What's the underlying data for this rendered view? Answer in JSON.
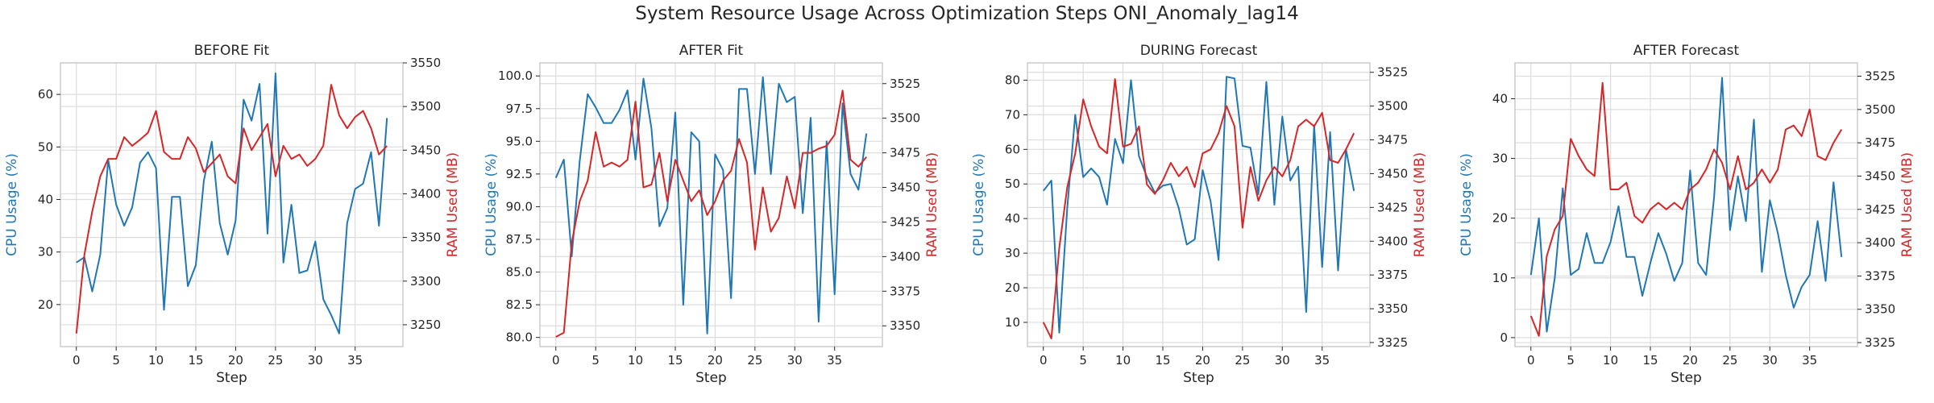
{
  "figure": {
    "suptitle": "System Resource Usage Across Optimization Steps ONI_Anomaly_lag14",
    "colors": {
      "cpu": "#1f77b4",
      "ram": "#d62728",
      "grid": "#dddddd",
      "axis": "#cccccc",
      "text": "#262626"
    }
  },
  "chart_data": [
    {
      "type": "line",
      "title": "BEFORE Fit",
      "xlabel": "Step",
      "ylabel": "CPU Usage (%)",
      "ylabel_right": "RAM Used (MB)",
      "x": [
        0,
        1,
        2,
        3,
        4,
        5,
        6,
        7,
        8,
        9,
        10,
        11,
        12,
        13,
        14,
        15,
        16,
        17,
        18,
        19,
        20,
        21,
        22,
        23,
        24,
        25,
        26,
        27,
        28,
        29,
        30,
        31,
        32,
        33,
        34,
        35,
        36,
        37,
        38,
        39
      ],
      "xlim": [
        -2,
        41
      ],
      "xticks": [
        0,
        5,
        10,
        15,
        20,
        25,
        30,
        35
      ],
      "ylim": [
        12,
        66
      ],
      "yticks": [
        20,
        30,
        40,
        50,
        60
      ],
      "ylim_right": [
        3225,
        3550
      ],
      "yticks_right": [
        3250,
        3300,
        3350,
        3400,
        3450,
        3500,
        3550
      ],
      "grid": true,
      "series": [
        {
          "name": "CPU Usage (%)",
          "axis": "left",
          "color": "#1f77b4",
          "values": [
            28,
            29,
            22.5,
            29.5,
            47.5,
            39,
            35,
            38.5,
            47,
            49,
            46,
            19,
            40.5,
            40.5,
            23.5,
            27.5,
            43.5,
            51,
            35.5,
            29.5,
            36,
            59,
            55,
            62,
            33.5,
            64,
            28,
            39,
            26,
            26.5,
            32,
            21,
            18,
            14.5,
            35.5,
            42,
            43,
            49,
            35,
            55.5
          ]
        },
        {
          "name": "RAM Used (MB)",
          "axis": "right",
          "color": "#d62728",
          "values": [
            3240,
            3330,
            3380,
            3420,
            3440,
            3440,
            3465,
            3455,
            3462,
            3470,
            3495,
            3448,
            3440,
            3440,
            3465,
            3452,
            3425,
            3435,
            3445,
            3420,
            3412,
            3475,
            3450,
            3465,
            3480,
            3420,
            3455,
            3440,
            3445,
            3432,
            3440,
            3455,
            3525,
            3490,
            3475,
            3488,
            3495,
            3475,
            3445,
            3455
          ]
        }
      ]
    },
    {
      "type": "line",
      "title": "AFTER Fit",
      "xlabel": "Step",
      "ylabel": "CPU Usage (%)",
      "ylabel_right": "RAM Used (MB)",
      "x": [
        0,
        1,
        2,
        3,
        4,
        5,
        6,
        7,
        8,
        9,
        10,
        11,
        12,
        13,
        14,
        15,
        16,
        17,
        18,
        19,
        20,
        21,
        22,
        23,
        24,
        25,
        26,
        27,
        28,
        29,
        30,
        31,
        32,
        33,
        34,
        35,
        36,
        37,
        38,
        39
      ],
      "xlim": [
        -2,
        41
      ],
      "xticks": [
        0,
        5,
        10,
        15,
        20,
        25,
        30,
        35
      ],
      "ylim": [
        79.3,
        101
      ],
      "yticks": [
        80.0,
        82.5,
        85.0,
        87.5,
        90.0,
        92.5,
        95.0,
        97.5,
        100.0
      ],
      "ylim_right": [
        3335,
        3540
      ],
      "yticks_right": [
        3350,
        3375,
        3400,
        3425,
        3450,
        3475,
        3500,
        3525
      ],
      "grid": true,
      "series": [
        {
          "name": "CPU Usage (%)",
          "axis": "left",
          "color": "#1f77b4",
          "values": [
            92.2,
            93.6,
            86.2,
            93.5,
            98.6,
            97.6,
            96.4,
            96.4,
            97.4,
            98.9,
            93.6,
            99.8,
            96,
            88.5,
            89.9,
            97.2,
            82.5,
            95.7,
            95,
            80.3,
            94,
            92.8,
            83,
            99,
            99,
            92.5,
            99.9,
            92.5,
            99.4,
            98,
            98.4,
            89.5,
            96.8,
            81.2,
            95,
            83.3,
            97.9,
            92.5,
            91.3,
            95.6
          ]
        },
        {
          "name": "RAM Used (MB)",
          "axis": "right",
          "color": "#d62728",
          "values": [
            3342,
            3345,
            3410,
            3440,
            3455,
            3490,
            3465,
            3468,
            3465,
            3470,
            3512,
            3450,
            3452,
            3475,
            3440,
            3470,
            3455,
            3440,
            3448,
            3430,
            3440,
            3455,
            3462,
            3485,
            3468,
            3405,
            3450,
            3418,
            3428,
            3458,
            3435,
            3475,
            3475,
            3478,
            3480,
            3488,
            3520,
            3470,
            3465,
            3472
          ]
        }
      ]
    },
    {
      "type": "line",
      "title": "DURING Forecast",
      "xlabel": "Step",
      "ylabel": "CPU Usage (%)",
      "ylabel_right": "RAM Used (MB)",
      "x": [
        0,
        1,
        2,
        3,
        4,
        5,
        6,
        7,
        8,
        9,
        10,
        11,
        12,
        13,
        14,
        15,
        16,
        17,
        18,
        19,
        20,
        21,
        22,
        23,
        24,
        25,
        26,
        27,
        28,
        29,
        30,
        31,
        32,
        33,
        34,
        35,
        36,
        37,
        38,
        39
      ],
      "xlim": [
        -2,
        41
      ],
      "xticks": [
        0,
        5,
        10,
        15,
        20,
        25,
        30,
        35
      ],
      "ylim": [
        3,
        85
      ],
      "yticks": [
        10,
        20,
        30,
        40,
        50,
        60,
        70,
        80
      ],
      "ylim_right": [
        3322,
        3532
      ],
      "yticks_right": [
        3325,
        3350,
        3375,
        3400,
        3425,
        3450,
        3475,
        3500,
        3525
      ],
      "grid": true,
      "series": [
        {
          "name": "CPU Usage (%)",
          "axis": "left",
          "color": "#1f77b4",
          "values": [
            48,
            51,
            7,
            43,
            70,
            52,
            54.5,
            52,
            44,
            63,
            56,
            80,
            58,
            52,
            47.5,
            49.5,
            50,
            43,
            32.5,
            34,
            54,
            45,
            28,
            81,
            80.5,
            61,
            60.5,
            47,
            79.5,
            44,
            69.5,
            51,
            55,
            13,
            67,
            26,
            65,
            25,
            60,
            48
          ]
        },
        {
          "name": "RAM Used (MB)",
          "axis": "right",
          "color": "#d62728",
          "values": [
            3340,
            3328,
            3395,
            3440,
            3465,
            3505,
            3485,
            3470,
            3465,
            3520,
            3470,
            3472,
            3485,
            3442,
            3435,
            3445,
            3458,
            3448,
            3455,
            3440,
            3465,
            3468,
            3480,
            3500,
            3485,
            3410,
            3455,
            3430,
            3445,
            3455,
            3448,
            3460,
            3485,
            3490,
            3485,
            3495,
            3460,
            3458,
            3468,
            3480
          ]
        }
      ]
    },
    {
      "type": "line",
      "title": "AFTER Forecast",
      "xlabel": "Step",
      "ylabel": "CPU Usage (%)",
      "ylabel_right": "RAM Used (MB)",
      "x": [
        0,
        1,
        2,
        3,
        4,
        5,
        6,
        7,
        8,
        9,
        10,
        11,
        12,
        13,
        14,
        15,
        16,
        17,
        18,
        19,
        20,
        21,
        22,
        23,
        24,
        25,
        26,
        27,
        28,
        29,
        30,
        31,
        32,
        33,
        34,
        35,
        36,
        37,
        38,
        39
      ],
      "xlim": [
        -2,
        41
      ],
      "xticks": [
        0,
        5,
        10,
        15,
        20,
        25,
        30,
        35
      ],
      "ylim": [
        -1.5,
        46
      ],
      "yticks": [
        0,
        10,
        20,
        30,
        40
      ],
      "ylim_right": [
        3322,
        3535
      ],
      "yticks_right": [
        3325,
        3350,
        3375,
        3400,
        3425,
        3450,
        3475,
        3500,
        3525
      ],
      "grid": true,
      "series": [
        {
          "name": "CPU Usage (%)",
          "axis": "left",
          "color": "#1f77b4",
          "values": [
            10.5,
            20,
            1,
            10,
            25,
            10.5,
            11.5,
            17.5,
            12.5,
            12.5,
            16,
            22,
            13.5,
            13.5,
            7,
            12.5,
            17.5,
            14,
            9.5,
            12.5,
            28,
            12.5,
            10.5,
            23.5,
            43.5,
            18,
            27,
            19.5,
            36.5,
            11,
            23,
            17.5,
            10.5,
            5,
            8.5,
            10.5,
            19.5,
            9.5,
            26,
            13.5
          ]
        },
        {
          "name": "RAM Used (MB)",
          "axis": "right",
          "color": "#d62728",
          "values": [
            3345,
            3330,
            3390,
            3410,
            3420,
            3478,
            3465,
            3455,
            3450,
            3520,
            3440,
            3440,
            3445,
            3420,
            3415,
            3425,
            3430,
            3425,
            3430,
            3425,
            3440,
            3445,
            3455,
            3470,
            3460,
            3440,
            3465,
            3440,
            3445,
            3455,
            3445,
            3455,
            3485,
            3488,
            3480,
            3500,
            3465,
            3462,
            3475,
            3485
          ]
        }
      ]
    }
  ]
}
